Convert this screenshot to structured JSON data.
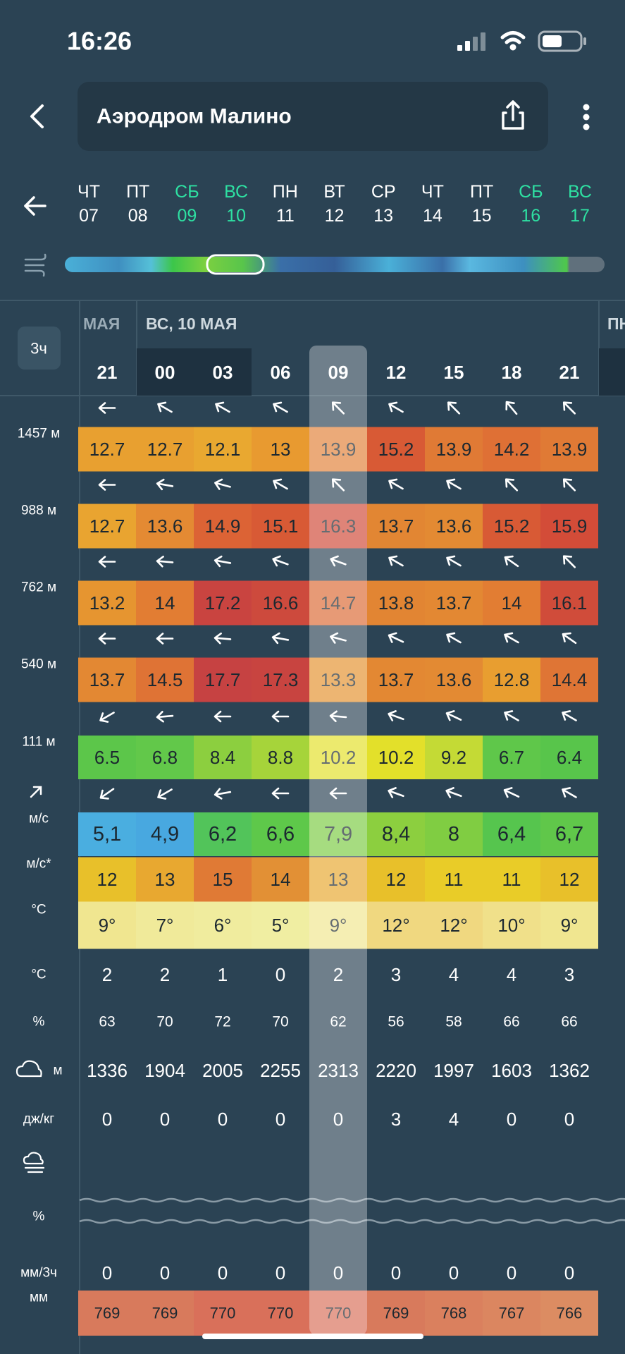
{
  "status_bar": {
    "time": "16:26"
  },
  "header": {
    "title": "Аэродром Малино"
  },
  "days": [
    {
      "dow": "ЧТ",
      "date": "07",
      "weekend": false
    },
    {
      "dow": "ПТ",
      "date": "08",
      "weekend": false
    },
    {
      "dow": "СБ",
      "date": "09",
      "weekend": true
    },
    {
      "dow": "ВС",
      "date": "10",
      "weekend": true
    },
    {
      "dow": "ПН",
      "date": "11",
      "weekend": false
    },
    {
      "dow": "ВТ",
      "date": "12",
      "weekend": false
    },
    {
      "dow": "СР",
      "date": "13",
      "weekend": false
    },
    {
      "dow": "ЧТ",
      "date": "14",
      "weekend": false
    },
    {
      "dow": "ПТ",
      "date": "15",
      "weekend": false
    },
    {
      "dow": "СБ",
      "date": "16",
      "weekend": true
    },
    {
      "dow": "ВС",
      "date": "17",
      "weekend": true
    }
  ],
  "table": {
    "step": "3ч",
    "date_labels": [
      "МАЯ",
      "ВС, 10 МАЯ",
      "ПН"
    ],
    "hours": [
      "21",
      "00",
      "03",
      "06",
      "09",
      "12",
      "15",
      "18",
      "21"
    ],
    "selected_hour": 4,
    "rows": [
      {
        "label": "1457 м",
        "values": [
          12.7,
          12.7,
          12.1,
          13,
          13.9,
          15.2,
          13.9,
          14.2,
          13.9
        ],
        "colors": [
          "#e8a030",
          "#e8a030",
          "#e9a830",
          "#e89a30",
          "#e2823a",
          "#d85a35",
          "#e07a35",
          "#df7035",
          "#e07a35"
        ],
        "arrows": [
          270,
          300,
          300,
          300,
          315,
          300,
          315,
          320,
          315
        ]
      },
      {
        "label": "988 м",
        "values": [
          12.7,
          13.6,
          14.9,
          15.1,
          16.3,
          13.7,
          13.6,
          15.2,
          15.9
        ],
        "colors": [
          "#e9a430",
          "#e48a33",
          "#dc6335",
          "#d85a35",
          "#d04a38",
          "#e28633",
          "#e38a33",
          "#d85a35",
          "#d34c38"
        ],
        "arrows": [
          270,
          280,
          285,
          300,
          315,
          300,
          300,
          315,
          315
        ]
      },
      {
        "label": "762 м",
        "values": [
          13.2,
          14,
          17.2,
          16.6,
          14.7,
          13.8,
          13.7,
          14,
          16.1
        ],
        "colors": [
          "#e69530",
          "#e27d33",
          "#c94440",
          "#cd4a3d",
          "#dc6b35",
          "#e28533",
          "#e38833",
          "#e27d33",
          "#d04c3a"
        ],
        "arrows": [
          270,
          275,
          280,
          290,
          290,
          300,
          300,
          305,
          315
        ]
      },
      {
        "label": "540 м",
        "values": [
          13.7,
          14.5,
          17.7,
          17.3,
          13.3,
          13.7,
          13.6,
          12.8,
          14.4
        ],
        "colors": [
          "#e38833",
          "#df7335",
          "#c64242",
          "#c84440",
          "#e59330",
          "#e38833",
          "#e38a33",
          "#e89e30",
          "#df7535"
        ],
        "arrows": [
          270,
          270,
          275,
          280,
          285,
          295,
          300,
          300,
          305
        ]
      },
      {
        "label": "111 м",
        "values": [
          6.5,
          6.8,
          8.4,
          8.8,
          10.2,
          10.2,
          9.2,
          6.7,
          6.4
        ],
        "colors": [
          "#5cc64a",
          "#62c84a",
          "#8ccf3f",
          "#a6d43a",
          "#e3e02a",
          "#e3e02a",
          "#c4da35",
          "#5fc74a",
          "#58c54b"
        ],
        "arrows": [
          240,
          265,
          270,
          270,
          275,
          290,
          295,
          300,
          300
        ]
      },
      {
        "label": "м/с",
        "values": [
          5.1,
          4.9,
          6.2,
          6.6,
          7.9,
          8.4,
          8,
          6.4,
          6.7
        ],
        "value_labels": [
          "5,1",
          "4,9",
          "6,2",
          "6,6",
          "7,9",
          "8,4",
          "8",
          "6,4",
          "6,7"
        ],
        "colors": [
          "#4aaee0",
          "#48a8e0",
          "#52c45a",
          "#5ec84a",
          "#7ccc44",
          "#8ccf3f",
          "#80cd42",
          "#56c54e",
          "#60c74a"
        ],
        "arrows": [
          235,
          240,
          260,
          270,
          270,
          290,
          290,
          295,
          300
        ]
      },
      {
        "label": "м/с*",
        "values": [
          12,
          13,
          15,
          14,
          13,
          12,
          11,
          11,
          12
        ],
        "colors": [
          "#e8c02a",
          "#e8a830",
          "#e07a35",
          "#e29035",
          "#e8a830",
          "#e8c02a",
          "#e9cc28",
          "#e9cc28",
          "#e8c02a"
        ]
      },
      {
        "label": "°C",
        "values": [
          9,
          7,
          6,
          5,
          9,
          12,
          12,
          10,
          9
        ],
        "value_labels": [
          "9°",
          "7°",
          "6°",
          "5°",
          "9°",
          "12°",
          "12°",
          "10°",
          "9°"
        ],
        "colors": [
          "#f0e690",
          "#f0ea9a",
          "#f0ec9e",
          "#f0eea2",
          "#f0e690",
          "#f0d880",
          "#f0d880",
          "#f0e08a",
          "#f0e690"
        ]
      },
      {
        "label": "°C",
        "values": [
          2,
          2,
          1,
          0,
          2,
          3,
          4,
          4,
          3
        ]
      },
      {
        "label": "%",
        "values": [
          63,
          70,
          72,
          70,
          62,
          56,
          58,
          66,
          66
        ]
      },
      {
        "label": "м",
        "values": [
          1336,
          1904,
          2005,
          2255,
          2313,
          2220,
          1997,
          1603,
          1362
        ]
      },
      {
        "label": "дж/кг",
        "values": [
          0,
          0,
          0,
          0,
          0,
          3,
          4,
          0,
          0
        ]
      },
      {
        "label": "%"
      },
      {
        "label": "мм/3ч",
        "values": [
          0,
          0,
          0,
          0,
          0,
          0,
          0,
          0,
          0
        ]
      },
      {
        "label": "мм",
        "values": [
          769,
          769,
          770,
          770,
          770,
          769,
          768,
          767,
          766
        ],
        "colors": [
          "#d87a5c",
          "#d87a5c",
          "#d9705a",
          "#d9705a",
          "#d9705a",
          "#d87a5c",
          "#da805e",
          "#db8660",
          "#dc8c62"
        ]
      }
    ]
  }
}
